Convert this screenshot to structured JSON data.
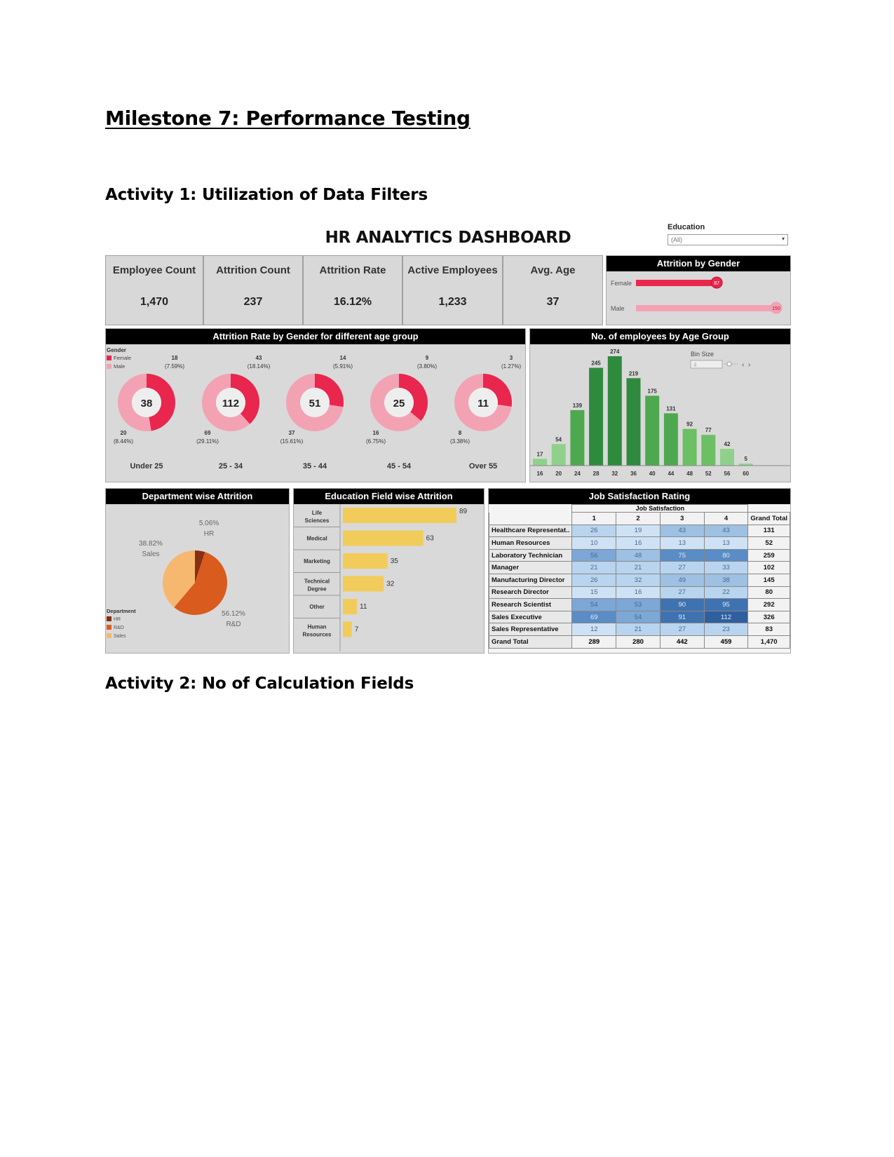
{
  "document": {
    "milestone_title": "Milestone 7: Performance Testing",
    "activity1_title": "Activity 1: Utilization of Data Filters",
    "activity2_title": "Activity 2: No of Calculation Fields"
  },
  "dashboard": {
    "title": "HR ANALYTICS DASHBOARD",
    "filter": {
      "label": "Education",
      "value": "(All)"
    },
    "kpis": [
      {
        "label": "Employee Count",
        "value": "1,470"
      },
      {
        "label": "Attrition Count",
        "value": "237"
      },
      {
        "label": "Attrition Rate",
        "value": "16.12%"
      },
      {
        "label": "Active Employees",
        "value": "1,233"
      },
      {
        "label": "Avg. Age",
        "value": "37"
      }
    ],
    "colors": {
      "female": "#e8264e",
      "male": "#f3a2b4",
      "green_dark": "#2e8b3e",
      "green_light": "#8fd18b",
      "bar_yellow": "#f2cc5b",
      "hr": "#8b2e16",
      "rd": "#d95b1e",
      "sales": "#f6b76f",
      "panel_bg": "#d9d9d9"
    }
  },
  "chart_data": [
    {
      "type": "bar",
      "title": "Attrition by Gender",
      "orientation": "horizontal",
      "categories": [
        "Female",
        "Male"
      ],
      "values": [
        87,
        150
      ],
      "colors": [
        "#e8264e",
        "#f3a2b4"
      ]
    },
    {
      "type": "pie",
      "title": "Attrition Rate by Gender for different age group",
      "legend_title": "Gender",
      "legend": [
        "Female",
        "Male"
      ],
      "groups": [
        {
          "age_group": "Under 25",
          "total": "38",
          "female": 18,
          "female_pct": "(7.59%)",
          "male": 20,
          "male_pct": "(8.44%)"
        },
        {
          "age_group": "25 - 34",
          "total": "112",
          "female": 43,
          "female_pct": "(18.14%)",
          "male": 69,
          "male_pct": "(29.11%)"
        },
        {
          "age_group": "35 - 44",
          "total": "51",
          "female": 14,
          "female_pct": "(5.91%)",
          "male": 37,
          "male_pct": "(15.61%)"
        },
        {
          "age_group": "45 - 54",
          "total": "25",
          "female": 9,
          "female_pct": "(3.80%)",
          "male": 16,
          "male_pct": "(6.75%)"
        },
        {
          "age_group": "Over 55",
          "total": "11",
          "female": 3,
          "female_pct": "(1.27%)",
          "male": 8,
          "male_pct": "(3.38%)"
        }
      ]
    },
    {
      "type": "bar",
      "title": "No. of employees by Age Group",
      "bin_size_label": "Bin Size",
      "bin_size": "4",
      "x_ticks": [
        "16",
        "20",
        "24",
        "28",
        "32",
        "36",
        "40",
        "44",
        "48",
        "52",
        "56",
        "60"
      ],
      "bin_starts": [
        16,
        20,
        24,
        28,
        32,
        36,
        40,
        44,
        48,
        52,
        56,
        60
      ],
      "values": [
        17,
        54,
        139,
        245,
        274,
        219,
        175,
        131,
        92,
        77,
        42,
        5
      ],
      "ylim": [
        0,
        274
      ]
    },
    {
      "type": "pie",
      "title": "Department wise Attrition",
      "legend_title": "Department",
      "slices": [
        {
          "label": "HR",
          "pct": "5.06%",
          "value": 5.06
        },
        {
          "label": "R&D",
          "pct": "56.12%",
          "value": 56.12
        },
        {
          "label": "Sales",
          "pct": "38.82%",
          "value": 38.82
        }
      ]
    },
    {
      "type": "bar",
      "title": "Education Field wise Attrition",
      "orientation": "horizontal",
      "categories": [
        "Life Sciences",
        "Medical",
        "Marketing",
        "Technical Degree",
        "Other",
        "Human Resources"
      ],
      "values": [
        89,
        63,
        35,
        32,
        11,
        7
      ],
      "xlim": [
        0,
        89
      ]
    },
    {
      "type": "table",
      "title": "Job Satisfaction Rating",
      "column_group": "Job Satisfaction",
      "columns": [
        "1",
        "2",
        "3",
        "4",
        "Grand Total"
      ],
      "rows": [
        {
          "role": "Healthcare Representat..",
          "values": [
            26,
            19,
            43,
            43
          ],
          "total": "131"
        },
        {
          "role": "Human Resources",
          "values": [
            10,
            16,
            13,
            13
          ],
          "total": "52"
        },
        {
          "role": "Laboratory Technician",
          "values": [
            56,
            48,
            75,
            80
          ],
          "total": "259"
        },
        {
          "role": "Manager",
          "values": [
            21,
            21,
            27,
            33
          ],
          "total": "102"
        },
        {
          "role": "Manufacturing Director",
          "values": [
            26,
            32,
            49,
            38
          ],
          "total": "145"
        },
        {
          "role": "Research Director",
          "values": [
            15,
            16,
            27,
            22
          ],
          "total": "80"
        },
        {
          "role": "Research Scientist",
          "values": [
            54,
            53,
            90,
            95
          ],
          "total": "292"
        },
        {
          "role": "Sales Executive",
          "values": [
            69,
            54,
            91,
            112
          ],
          "total": "326"
        },
        {
          "role": "Sales Representative",
          "values": [
            12,
            21,
            27,
            23
          ],
          "total": "83"
        }
      ],
      "grand_total": {
        "label": "Grand Total",
        "values": [
          "289",
          "280",
          "442",
          "459"
        ],
        "total": "1,470"
      }
    }
  ]
}
